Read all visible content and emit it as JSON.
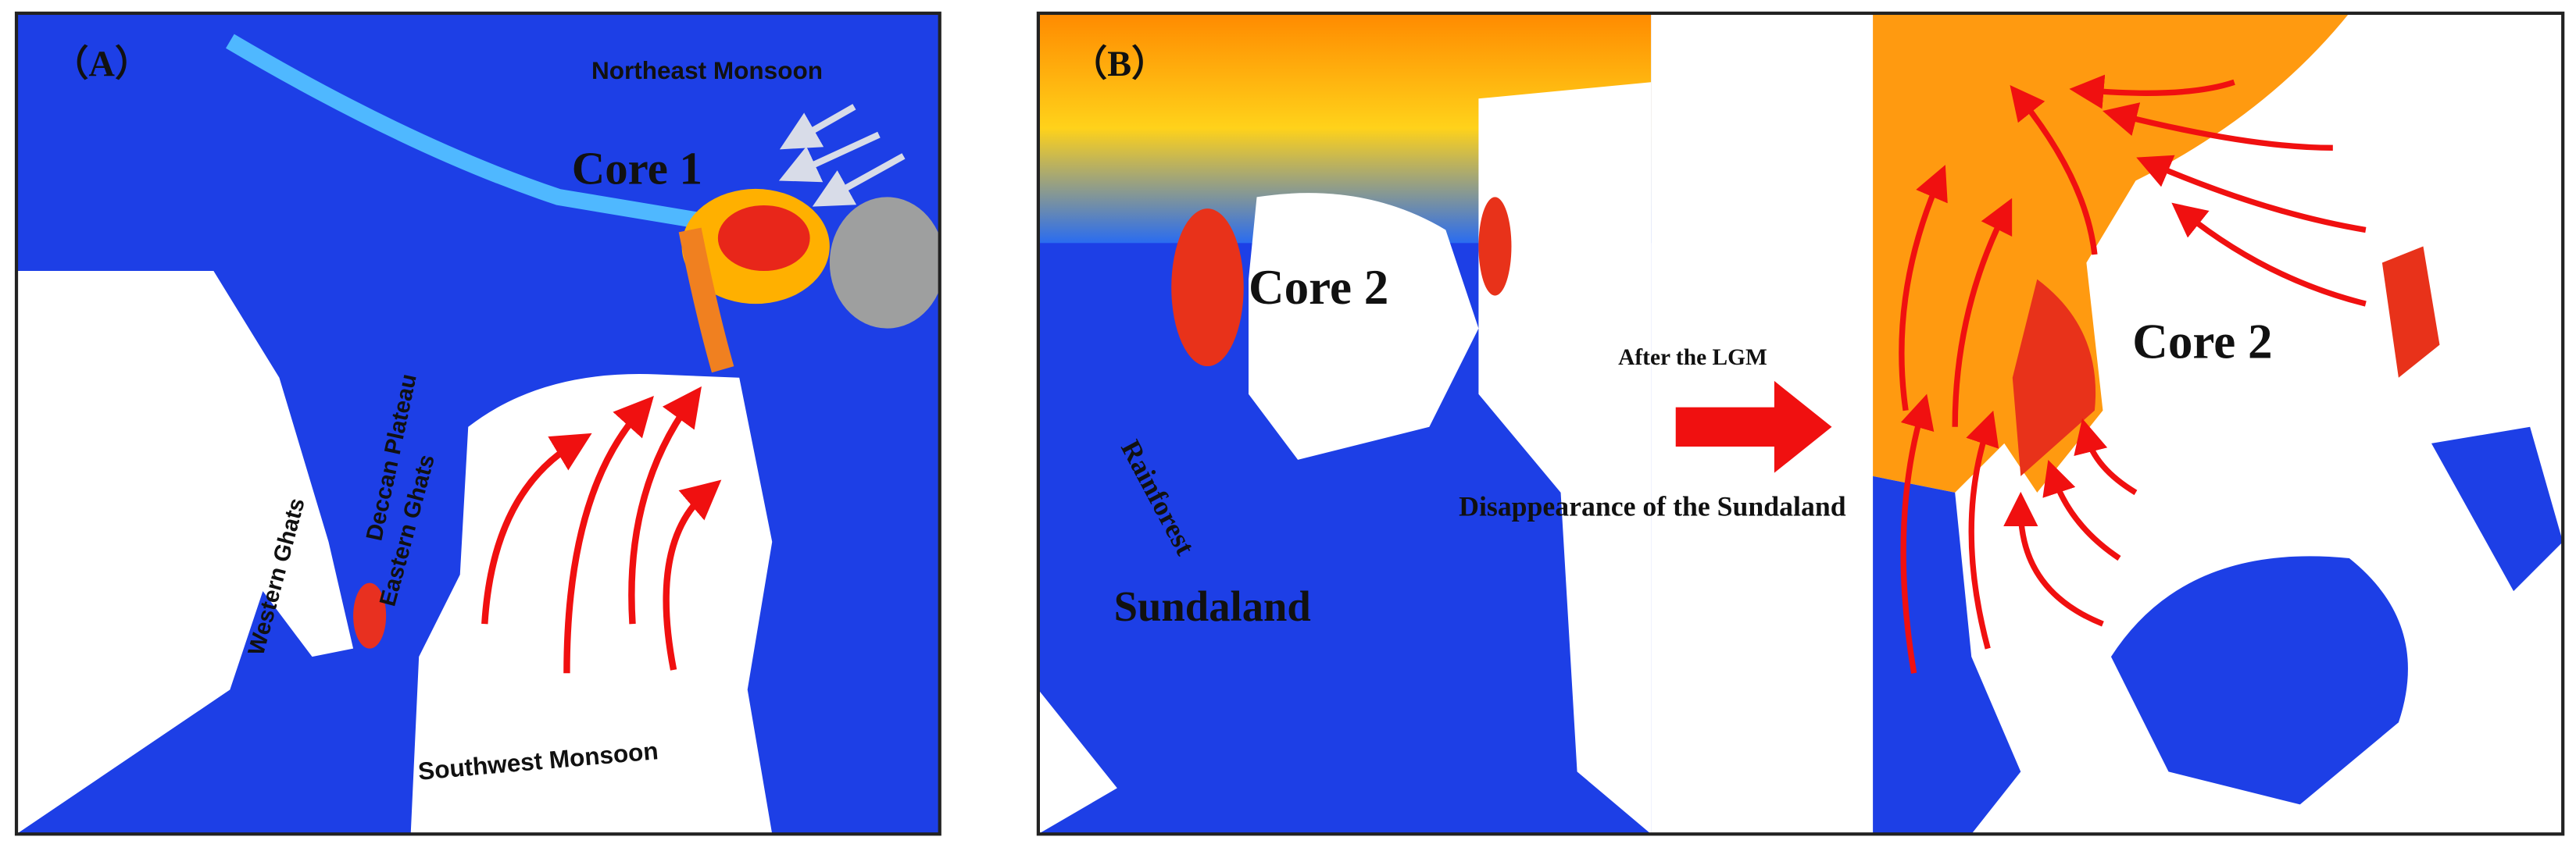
{
  "panels": [
    {
      "label": "（A）",
      "annotations": [
        "Northeast Monsoon",
        "Core 1",
        "Deccan Plateau",
        "Western Ghats",
        "Eastern Ghats",
        "Southwest Monsoon"
      ]
    },
    {
      "label": "（B）",
      "annotations": [
        "Core 2",
        "Rainforest",
        "Sundaland",
        "After the LGM",
        "Disappearance of the Sundaland",
        "Core 2"
      ]
    }
  ]
}
